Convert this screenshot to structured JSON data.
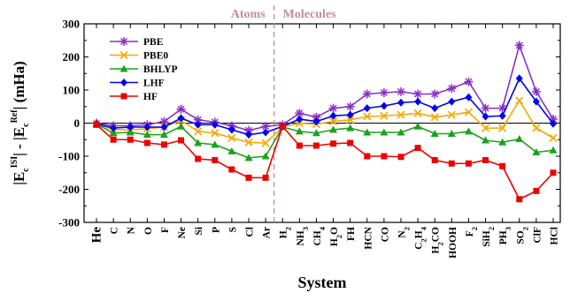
{
  "chart_data": {
    "type": "line",
    "xlabel": "System",
    "ylim": [
      -300,
      300
    ],
    "yticks": [
      -300,
      -200,
      -100,
      0,
      100,
      200,
      300
    ],
    "grid": false,
    "legend_position": "top-left",
    "region_labels": [
      "Atoms",
      "Molecules"
    ],
    "separator_after_category": "Ar",
    "categories": [
      {
        "main": "He"
      },
      {
        "main": "C"
      },
      {
        "main": "N"
      },
      {
        "main": "O"
      },
      {
        "main": "F"
      },
      {
        "main": "Ne"
      },
      {
        "main": "Si"
      },
      {
        "main": "P"
      },
      {
        "main": "S"
      },
      {
        "main": "Cl"
      },
      {
        "main": "Ar"
      },
      {
        "main": "H",
        "sub": "2"
      },
      {
        "main": "NH",
        "sub": "3"
      },
      {
        "main": "CH",
        "sub": "4"
      },
      {
        "main": "H",
        "sub": "2",
        "rest": "O"
      },
      {
        "main": "FH"
      },
      {
        "main": "HCN"
      },
      {
        "main": "CO"
      },
      {
        "main": "N",
        "sub": "2"
      },
      {
        "main": "C",
        "sub": "2",
        "rest": "H",
        "sub2": "4"
      },
      {
        "main": "H",
        "sub": "2",
        "rest": "CO"
      },
      {
        "main": "HOOH"
      },
      {
        "main": "F",
        "sub": "2"
      },
      {
        "main": "SiH",
        "sub": "2"
      },
      {
        "main": "PH",
        "sub": "3"
      },
      {
        "main": "SO",
        "sub": "2"
      },
      {
        "main": "ClF"
      },
      {
        "main": "HCl"
      }
    ],
    "series": [
      {
        "name": "PBE",
        "color": "#8b2fc9",
        "marker": "star",
        "values": [
          0,
          -8,
          -8,
          -5,
          5,
          42,
          10,
          3,
          -8,
          -22,
          -10,
          -5,
          30,
          18,
          45,
          50,
          88,
          92,
          95,
          88,
          88,
          105,
          125,
          45,
          45,
          235,
          95,
          12
        ]
      },
      {
        "name": "PBE0",
        "color": "#f5a800",
        "marker": "x",
        "values": [
          -2,
          -20,
          -20,
          -17,
          -12,
          8,
          -25,
          -30,
          -45,
          -58,
          -60,
          -12,
          0,
          -3,
          5,
          10,
          20,
          22,
          25,
          30,
          18,
          25,
          33,
          -15,
          -15,
          68,
          -15,
          -45
        ]
      },
      {
        "name": "BHLYP",
        "color": "#1aa31a",
        "marker": "triangle",
        "values": [
          -3,
          -30,
          -28,
          -35,
          -35,
          -10,
          -60,
          -65,
          -85,
          -105,
          -100,
          -12,
          -25,
          -30,
          -20,
          -15,
          -28,
          -28,
          -28,
          -10,
          -32,
          -32,
          -25,
          -52,
          -58,
          -48,
          -88,
          -82
        ]
      },
      {
        "name": "LHF",
        "color": "#0000ee",
        "marker": "diamond",
        "values": [
          -2,
          -15,
          -12,
          -12,
          -12,
          15,
          -5,
          -5,
          -20,
          -35,
          -28,
          -10,
          12,
          5,
          22,
          25,
          45,
          52,
          62,
          65,
          45,
          65,
          78,
          20,
          22,
          135,
          65,
          -2
        ]
      },
      {
        "name": "HF",
        "color": "#ee0000",
        "marker": "square",
        "values": [
          -5,
          -50,
          -50,
          -60,
          -65,
          -52,
          -108,
          -112,
          -140,
          -165,
          -165,
          -10,
          -68,
          -68,
          -62,
          -60,
          -100,
          -100,
          -102,
          -75,
          -112,
          -122,
          -122,
          -112,
          -130,
          -230,
          -205,
          -150
        ]
      }
    ]
  }
}
